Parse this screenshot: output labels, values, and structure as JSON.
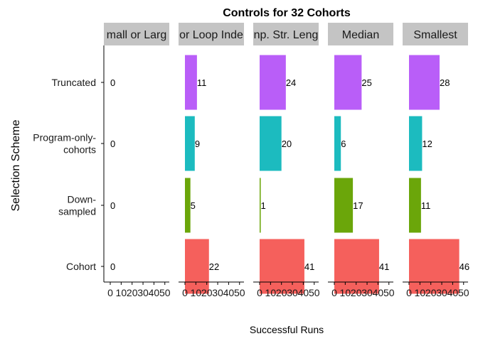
{
  "chart_data": {
    "type": "bar",
    "orientation": "horizontal",
    "title": "Controls for 32 Cohorts",
    "xlabel": "Successful Runs",
    "ylabel": "Selection Scheme",
    "xlim": [
      0,
      55
    ],
    "x_ticks": [
      0,
      10,
      20,
      30,
      40,
      50
    ],
    "x_tick_labels": [
      "0",
      "10",
      "20",
      "30",
      "40",
      "50"
    ],
    "categories": [
      "Truncated",
      "Program-only-cohorts",
      "Down-sampled",
      "Cohort"
    ],
    "category_labels": [
      [
        "Truncated"
      ],
      [
        "Program-only-",
        "cohorts"
      ],
      [
        "Down-",
        "sampled"
      ],
      [
        "Cohort"
      ]
    ],
    "colors": {
      "Truncated": "#b95ef8",
      "Program-only-cohorts": "#1cbbbf",
      "Down-sampled": "#6ba60a",
      "Cohort": "#f5605c"
    },
    "facets": [
      {
        "label": "mall or Larg",
        "values": [
          0,
          0,
          0,
          0
        ]
      },
      {
        "label": "or Loop Inde",
        "values": [
          11,
          9,
          5,
          22
        ]
      },
      {
        "label": "np. Str. Leng",
        "values": [
          24,
          20,
          1,
          41
        ]
      },
      {
        "label": "Median",
        "values": [
          25,
          6,
          17,
          41
        ]
      },
      {
        "label": "Smallest",
        "values": [
          28,
          12,
          11,
          46
        ]
      }
    ],
    "grid": false,
    "legend": "none",
    "strip_color": "#c4c4c4"
  }
}
